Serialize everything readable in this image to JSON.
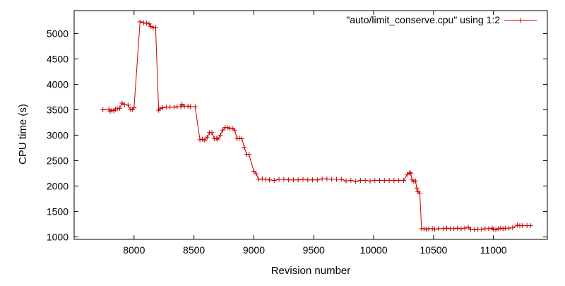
{
  "chart_data": {
    "type": "line",
    "title": "",
    "xlabel": "Revision number",
    "ylabel": "CPU time (s)",
    "xlim": [
      7500,
      11450
    ],
    "ylim": [
      950,
      5450
    ],
    "xticks": [
      8000,
      8500,
      9000,
      9500,
      10000,
      10500,
      11000
    ],
    "yticks": [
      1000,
      1500,
      2000,
      2500,
      3000,
      3500,
      4000,
      4500,
      5000
    ],
    "grid": false,
    "legend_position": "top-right",
    "series": [
      {
        "name": "\"auto/limit_conserve.cpu\" using 1:2",
        "color": "#cc0000",
        "marker": "plus",
        "points": [
          [
            7740,
            3500
          ],
          [
            7790,
            3510
          ],
          [
            7800,
            3470
          ],
          [
            7815,
            3490
          ],
          [
            7830,
            3480
          ],
          [
            7845,
            3510
          ],
          [
            7860,
            3520
          ],
          [
            7880,
            3530
          ],
          [
            7900,
            3630
          ],
          [
            7920,
            3600
          ],
          [
            7950,
            3590
          ],
          [
            7970,
            3510
          ],
          [
            7985,
            3500
          ],
          [
            8000,
            3540
          ],
          [
            8050,
            5230
          ],
          [
            8080,
            5210
          ],
          [
            8105,
            5200
          ],
          [
            8125,
            5190
          ],
          [
            8140,
            5140
          ],
          [
            8160,
            5110
          ],
          [
            8180,
            5120
          ],
          [
            8205,
            3490
          ],
          [
            8215,
            3520
          ],
          [
            8240,
            3540
          ],
          [
            8270,
            3550
          ],
          [
            8300,
            3550
          ],
          [
            8335,
            3550
          ],
          [
            8360,
            3560
          ],
          [
            8390,
            3560
          ],
          [
            8400,
            3610
          ],
          [
            8420,
            3570
          ],
          [
            8450,
            3570
          ],
          [
            8470,
            3560
          ],
          [
            8510,
            3560
          ],
          [
            8550,
            2910
          ],
          [
            8570,
            2920
          ],
          [
            8590,
            2900
          ],
          [
            8610,
            2960
          ],
          [
            8630,
            3050
          ],
          [
            8650,
            3050
          ],
          [
            8670,
            2930
          ],
          [
            8690,
            2940
          ],
          [
            8700,
            2920
          ],
          [
            8720,
            3000
          ],
          [
            8740,
            3100
          ],
          [
            8760,
            3150
          ],
          [
            8780,
            3150
          ],
          [
            8800,
            3130
          ],
          [
            8820,
            3140
          ],
          [
            8840,
            3100
          ],
          [
            8860,
            2930
          ],
          [
            8880,
            2940
          ],
          [
            8900,
            2930
          ],
          [
            8920,
            2760
          ],
          [
            8940,
            2620
          ],
          [
            8960,
            2620
          ],
          [
            9000,
            2290
          ],
          [
            9020,
            2240
          ],
          [
            9040,
            2130
          ],
          [
            9070,
            2140
          ],
          [
            9100,
            2130
          ],
          [
            9130,
            2120
          ],
          [
            9170,
            2110
          ],
          [
            9210,
            2130
          ],
          [
            9250,
            2130
          ],
          [
            9290,
            2120
          ],
          [
            9330,
            2120
          ],
          [
            9370,
            2120
          ],
          [
            9410,
            2130
          ],
          [
            9450,
            2120
          ],
          [
            9490,
            2120
          ],
          [
            9530,
            2120
          ],
          [
            9570,
            2140
          ],
          [
            9610,
            2140
          ],
          [
            9650,
            2130
          ],
          [
            9690,
            2130
          ],
          [
            9730,
            2130
          ],
          [
            9770,
            2100
          ],
          [
            9810,
            2110
          ],
          [
            9850,
            2090
          ],
          [
            9890,
            2110
          ],
          [
            9930,
            2110
          ],
          [
            9970,
            2100
          ],
          [
            10010,
            2110
          ],
          [
            10050,
            2110
          ],
          [
            10090,
            2110
          ],
          [
            10130,
            2110
          ],
          [
            10170,
            2110
          ],
          [
            10210,
            2110
          ],
          [
            10250,
            2110
          ],
          [
            10280,
            2230
          ],
          [
            10300,
            2260
          ],
          [
            10310,
            2250
          ],
          [
            10320,
            2120
          ],
          [
            10335,
            2090
          ],
          [
            10350,
            2100
          ],
          [
            10360,
            1960
          ],
          [
            10370,
            1890
          ],
          [
            10385,
            1860
          ],
          [
            10400,
            1160
          ],
          [
            10420,
            1160
          ],
          [
            10440,
            1150
          ],
          [
            10460,
            1160
          ],
          [
            10490,
            1160
          ],
          [
            10510,
            1150
          ],
          [
            10540,
            1160
          ],
          [
            10580,
            1160
          ],
          [
            10610,
            1170
          ],
          [
            10640,
            1160
          ],
          [
            10670,
            1160
          ],
          [
            10700,
            1170
          ],
          [
            10730,
            1160
          ],
          [
            10760,
            1170
          ],
          [
            10790,
            1190
          ],
          [
            10810,
            1150
          ],
          [
            10840,
            1140
          ],
          [
            10870,
            1150
          ],
          [
            10900,
            1150
          ],
          [
            10930,
            1160
          ],
          [
            10960,
            1160
          ],
          [
            10990,
            1170
          ],
          [
            11000,
            1150
          ],
          [
            11020,
            1140
          ],
          [
            11040,
            1160
          ],
          [
            11060,
            1170
          ],
          [
            11080,
            1160
          ],
          [
            11100,
            1170
          ],
          [
            11130,
            1170
          ],
          [
            11160,
            1180
          ],
          [
            11200,
            1230
          ],
          [
            11220,
            1220
          ],
          [
            11240,
            1220
          ],
          [
            11280,
            1220
          ],
          [
            11310,
            1220
          ]
        ]
      }
    ]
  }
}
